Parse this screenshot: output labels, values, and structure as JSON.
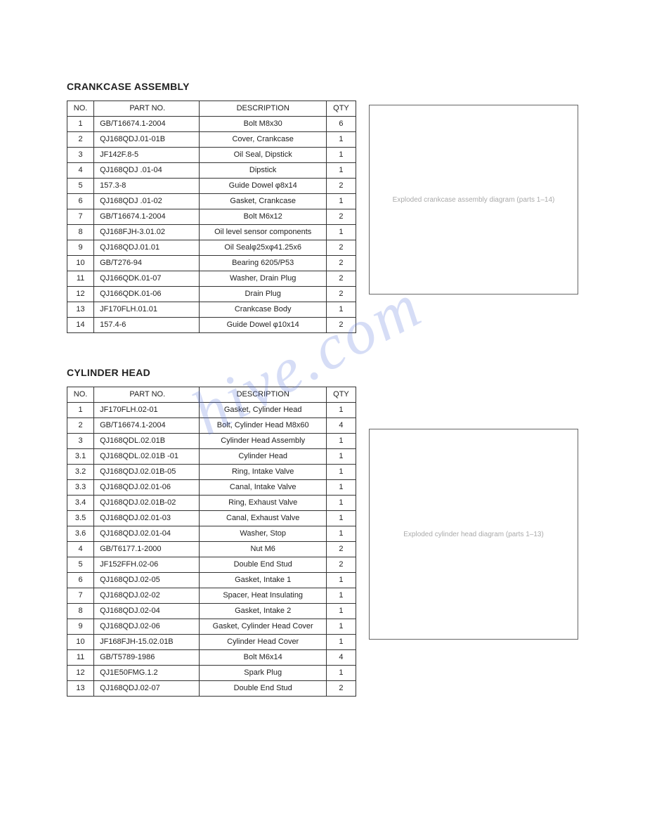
{
  "watermark_text": "hive.com",
  "sections": [
    {
      "title": "CRANKCASE ASSEMBLY",
      "columns": [
        "NO.",
        "PART NO.",
        "DESCRIPTION",
        "QTY"
      ],
      "diagram_label": "Exploded crankcase assembly diagram (parts 1–14)",
      "rows": [
        {
          "no": "1",
          "part": "GB/T16674.1-2004",
          "desc": "Bolt M8x30",
          "qty": "6"
        },
        {
          "no": "2",
          "part": "QJ168QDJ.01-01B",
          "desc": "Cover, Crankcase",
          "qty": "1"
        },
        {
          "no": "3",
          "part": "JF142F.8-5",
          "desc": "Oil Seal, Dipstick",
          "qty": "1"
        },
        {
          "no": "4",
          "part": "QJ168QDJ .01-04",
          "desc": "Dipstick",
          "qty": "1"
        },
        {
          "no": "5",
          "part": "157.3-8",
          "desc": "Guide Dowel φ8x14",
          "qty": "2"
        },
        {
          "no": "6",
          "part": "QJ168QDJ .01-02",
          "desc": "Gasket, Crankcase",
          "qty": "1"
        },
        {
          "no": "7",
          "part": "GB/T16674.1-2004",
          "desc": "Bolt M6x12",
          "qty": "2"
        },
        {
          "no": "8",
          "part": "QJ168FJH-3.01.02",
          "desc": "Oil level sensor components",
          "qty": "1"
        },
        {
          "no": "9",
          "part": "QJ168QDJ.01.01",
          "desc": "Oil Sealφ25xφ41.25x6",
          "qty": "2"
        },
        {
          "no": "10",
          "part": "GB/T276-94",
          "desc": "Bearing 6205/P53",
          "qty": "2"
        },
        {
          "no": "11",
          "part": "QJ166QDK.01-07",
          "desc": "Washer, Drain Plug",
          "qty": "2"
        },
        {
          "no": "12",
          "part": "QJ166QDK.01-06",
          "desc": "Drain Plug",
          "qty": "2"
        },
        {
          "no": "13",
          "part": "JF170FLH.01.01",
          "desc": "Crankcase Body",
          "qty": "1"
        },
        {
          "no": "14",
          "part": "157.4-6",
          "desc": "Guide Dowel φ10x14",
          "qty": "2"
        }
      ]
    },
    {
      "title": "CYLINDER HEAD",
      "columns": [
        "NO.",
        "PART NO.",
        "DESCRIPTION",
        "QTY"
      ],
      "diagram_label": "Exploded cylinder head diagram (parts 1–13)",
      "rows": [
        {
          "no": "1",
          "part": "JF170FLH.02-01",
          "desc": "Gasket, Cylinder Head",
          "qty": "1"
        },
        {
          "no": "2",
          "part": "GB/T16674.1-2004",
          "desc": "Bolt, Cylinder Head M8x60",
          "qty": "4"
        },
        {
          "no": "3",
          "part": "QJ168QDL.02.01B",
          "desc": "Cylinder Head Assembly",
          "qty": "1"
        },
        {
          "no": "3.1",
          "part": "QJ168QDL.02.01B -01",
          "desc": "Cylinder Head",
          "qty": "1"
        },
        {
          "no": "3.2",
          "part": "QJ168QDJ.02.01B-05",
          "desc": "Ring, Intake Valve",
          "qty": "1"
        },
        {
          "no": "3.3",
          "part": "QJ168QDJ.02.01-06",
          "desc": "Canal, Intake Valve",
          "qty": "1"
        },
        {
          "no": "3.4",
          "part": "QJ168QDJ.02.01B-02",
          "desc": "Ring, Exhaust Valve",
          "qty": "1"
        },
        {
          "no": "3.5",
          "part": "QJ168QDJ.02.01-03",
          "desc": "Canal, Exhaust Valve",
          "qty": "1"
        },
        {
          "no": "3.6",
          "part": "QJ168QDJ.02.01-04",
          "desc": "Washer, Stop",
          "qty": "1"
        },
        {
          "no": "4",
          "part": "GB/T6177.1-2000",
          "desc": "Nut M6",
          "qty": "2"
        },
        {
          "no": "5",
          "part": "JF152FFH.02-06",
          "desc": "Double End Stud",
          "qty": "2"
        },
        {
          "no": "6",
          "part": "QJ168QDJ.02-05",
          "desc": "Gasket, Intake 1",
          "qty": "1"
        },
        {
          "no": "7",
          "part": "QJ168QDJ.02-02",
          "desc": "Spacer, Heat Insulating",
          "qty": "1"
        },
        {
          "no": "8",
          "part": "QJ168QDJ.02-04",
          "desc": "Gasket, Intake 2",
          "qty": "1"
        },
        {
          "no": "9",
          "part": "QJ168QDJ.02-06",
          "desc": "Gasket, Cylinder Head Cover",
          "qty": "1"
        },
        {
          "no": "10",
          "part": "JF168FJH-15.02.01B",
          "desc": "Cylinder Head Cover",
          "qty": "1"
        },
        {
          "no": "11",
          "part": "GB/T5789-1986",
          "desc": "Bolt M6x14",
          "qty": "4"
        },
        {
          "no": "12",
          "part": "QJ1E50FMG.1.2",
          "desc": "Spark Plug",
          "qty": "1"
        },
        {
          "no": "13",
          "part": "QJ168QDJ.02-07",
          "desc": "Double End Stud",
          "qty": "2"
        }
      ]
    }
  ]
}
